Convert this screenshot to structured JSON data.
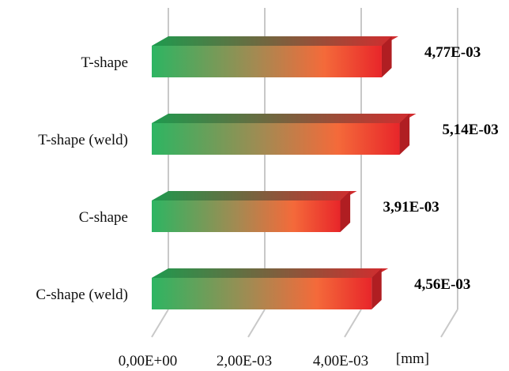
{
  "chart_data": {
    "type": "bar",
    "orientation": "horizontal",
    "style": "3d-gradient",
    "categories": [
      "T-shape",
      "T-shape (weld)",
      "C-shape",
      "C-shape (weld)"
    ],
    "values": [
      0.00477,
      0.00514,
      0.00391,
      0.00456
    ],
    "value_labels": [
      "4,77E-03",
      "5,14E-03",
      "3,91E-03",
      "4,56E-03"
    ],
    "x_ticks": [
      0,
      0.002,
      0.004,
      0.006
    ],
    "x_tick_labels": [
      "0,00E+00",
      "2,00E-03",
      "4,00E-03",
      ""
    ],
    "xlim": [
      0,
      0.006
    ],
    "xlabel": "[mm]",
    "grid": true,
    "legend": "none",
    "colors": {
      "gradient_start": "#2db562",
      "gradient_mid": "#a38a52",
      "gradient_warm": "#f46a3a",
      "gradient_end": "#e8262a",
      "top_start": "#1e9a4e",
      "top_end": "#d42a2e",
      "side": "#b01e22",
      "grid": "#c8c8c8"
    }
  }
}
